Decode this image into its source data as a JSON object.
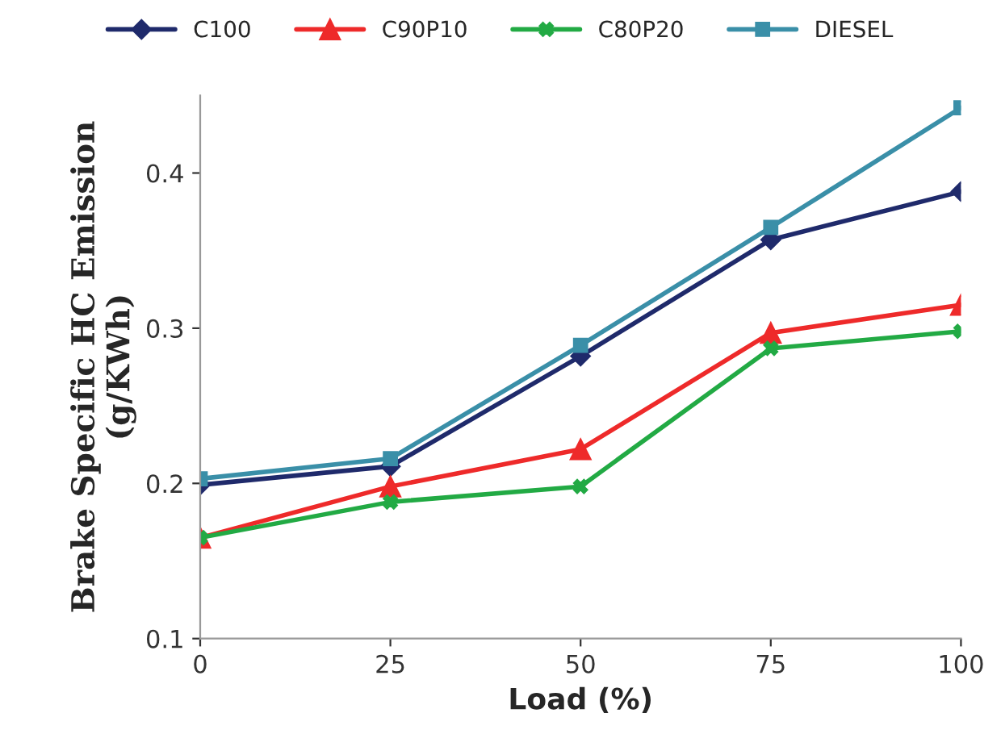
{
  "chart_data": {
    "type": "line",
    "xlabel": "Load (%)",
    "ylabel": "Brake Specific HC Emission\n(g/KWh)",
    "x": [
      0,
      25,
      50,
      75,
      100
    ],
    "series": [
      {
        "name": "C100",
        "color": "#1f2a6b",
        "marker": "diamond",
        "values": [
          0.199,
          0.211,
          0.282,
          0.357,
          0.388
        ]
      },
      {
        "name": "C90P10",
        "color": "#ee2a2a",
        "marker": "triangle",
        "values": [
          0.165,
          0.198,
          0.222,
          0.297,
          0.315
        ]
      },
      {
        "name": "C80P20",
        "color": "#22aa44",
        "marker": "cross",
        "values": [
          0.165,
          0.188,
          0.198,
          0.287,
          0.298
        ]
      },
      {
        "name": "DIESEL",
        "color": "#3a8fa8",
        "marker": "square",
        "values": [
          0.203,
          0.216,
          0.289,
          0.365,
          0.442
        ]
      }
    ],
    "xlim": [
      0,
      100
    ],
    "xticks": [
      0,
      25,
      50,
      75,
      100
    ],
    "ylim": [
      0.1,
      0.45
    ],
    "yticks": [
      0.1,
      0.2,
      0.3,
      0.4
    ],
    "grid": false,
    "legend": "top",
    "line_style": "solid"
  }
}
